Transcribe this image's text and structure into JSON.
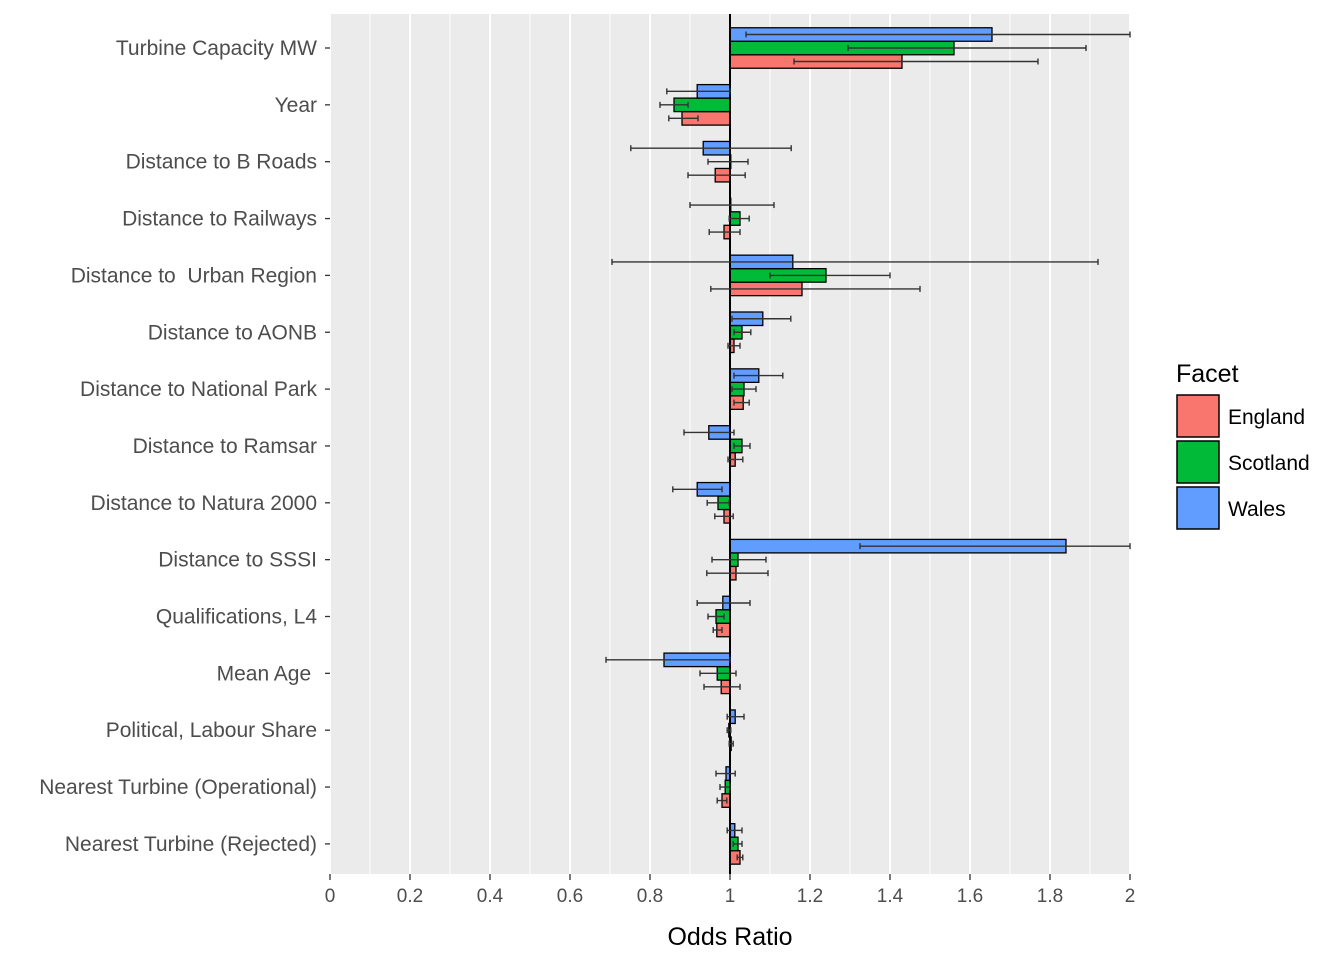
{
  "chart_data": {
    "type": "bar",
    "orientation": "horizontal",
    "title": "",
    "xlabel": "Odds Ratio",
    "ylabel": "",
    "xlim": [
      0,
      2
    ],
    "x_ticks": [
      0,
      0.2,
      0.4,
      0.6,
      0.8,
      1,
      1.2,
      1.4,
      1.6,
      1.8,
      2
    ],
    "x_tick_labels": [
      "0",
      "0.2",
      "0.4",
      "0.6",
      "0.8",
      "1",
      "1.2",
      "1.4",
      "1.6",
      "1.8",
      "2"
    ],
    "reference_line": 1,
    "grid": true,
    "legend_title": "Facet",
    "legend_position": "right",
    "categories": [
      "Turbine Capacity MW",
      "Year",
      "Distance to B Roads",
      "Distance to Railways",
      "Distance to  Urban Region",
      "Distance to AONB",
      "Distance to National Park",
      "Distance to Ramsar",
      "Distance to Natura 2000",
      "Distance to SSSI",
      "Qualifications, L4",
      "Mean Age ",
      "Political, Labour Share",
      "Nearest Turbine (Operational)",
      "Nearest Turbine (Rejected)"
    ],
    "series": [
      {
        "name": "England",
        "color": "#F8766D",
        "values": [
          1.43,
          0.88,
          0.963,
          0.985,
          1.18,
          1.01,
          1.033,
          1.013,
          0.985,
          1.015,
          0.967,
          0.978,
          1.003,
          0.98,
          1.025
        ],
        "ci_low": [
          1.16,
          0.847,
          0.895,
          0.948,
          0.952,
          0.995,
          1.01,
          0.995,
          0.962,
          0.942,
          0.958,
          0.935,
          0.998,
          0.968,
          1.018
        ],
        "ci_high": [
          1.77,
          0.92,
          1.038,
          1.025,
          1.475,
          1.025,
          1.048,
          1.032,
          1.008,
          1.095,
          0.98,
          1.025,
          1.008,
          0.992,
          1.032
        ]
      },
      {
        "name": "Scotland",
        "color": "#00BA38",
        "values": [
          1.56,
          0.86,
          1.0,
          1.025,
          1.24,
          1.03,
          1.035,
          1.03,
          0.97,
          1.02,
          0.965,
          0.968,
          0.997,
          0.988,
          1.02
        ],
        "ci_low": [
          1.295,
          0.825,
          0.945,
          0.998,
          1.1,
          1.01,
          1.005,
          1.01,
          0.943,
          0.955,
          0.945,
          0.925,
          0.993,
          0.975,
          1.008
        ],
        "ci_high": [
          1.89,
          0.895,
          1.045,
          1.048,
          1.4,
          1.052,
          1.065,
          1.05,
          0.998,
          1.09,
          0.985,
          1.015,
          1.002,
          1.0,
          1.03
        ]
      },
      {
        "name": "Wales",
        "color": "#619CFF",
        "values": [
          1.655,
          0.918,
          0.933,
          1.0,
          1.157,
          1.082,
          1.072,
          0.947,
          0.918,
          1.84,
          0.982,
          0.835,
          1.013,
          0.99,
          1.012
        ],
        "ci_low": [
          1.04,
          0.842,
          0.752,
          0.9,
          0.705,
          1.005,
          1.01,
          0.885,
          0.857,
          1.325,
          0.918,
          0.69,
          0.993,
          0.965,
          0.993
        ],
        "ci_high": [
          2.0,
          1.0,
          1.153,
          1.11,
          1.92,
          1.152,
          1.132,
          1.01,
          0.98,
          2.0,
          1.05,
          1.0,
          1.035,
          1.013,
          1.03
        ]
      }
    ]
  }
}
